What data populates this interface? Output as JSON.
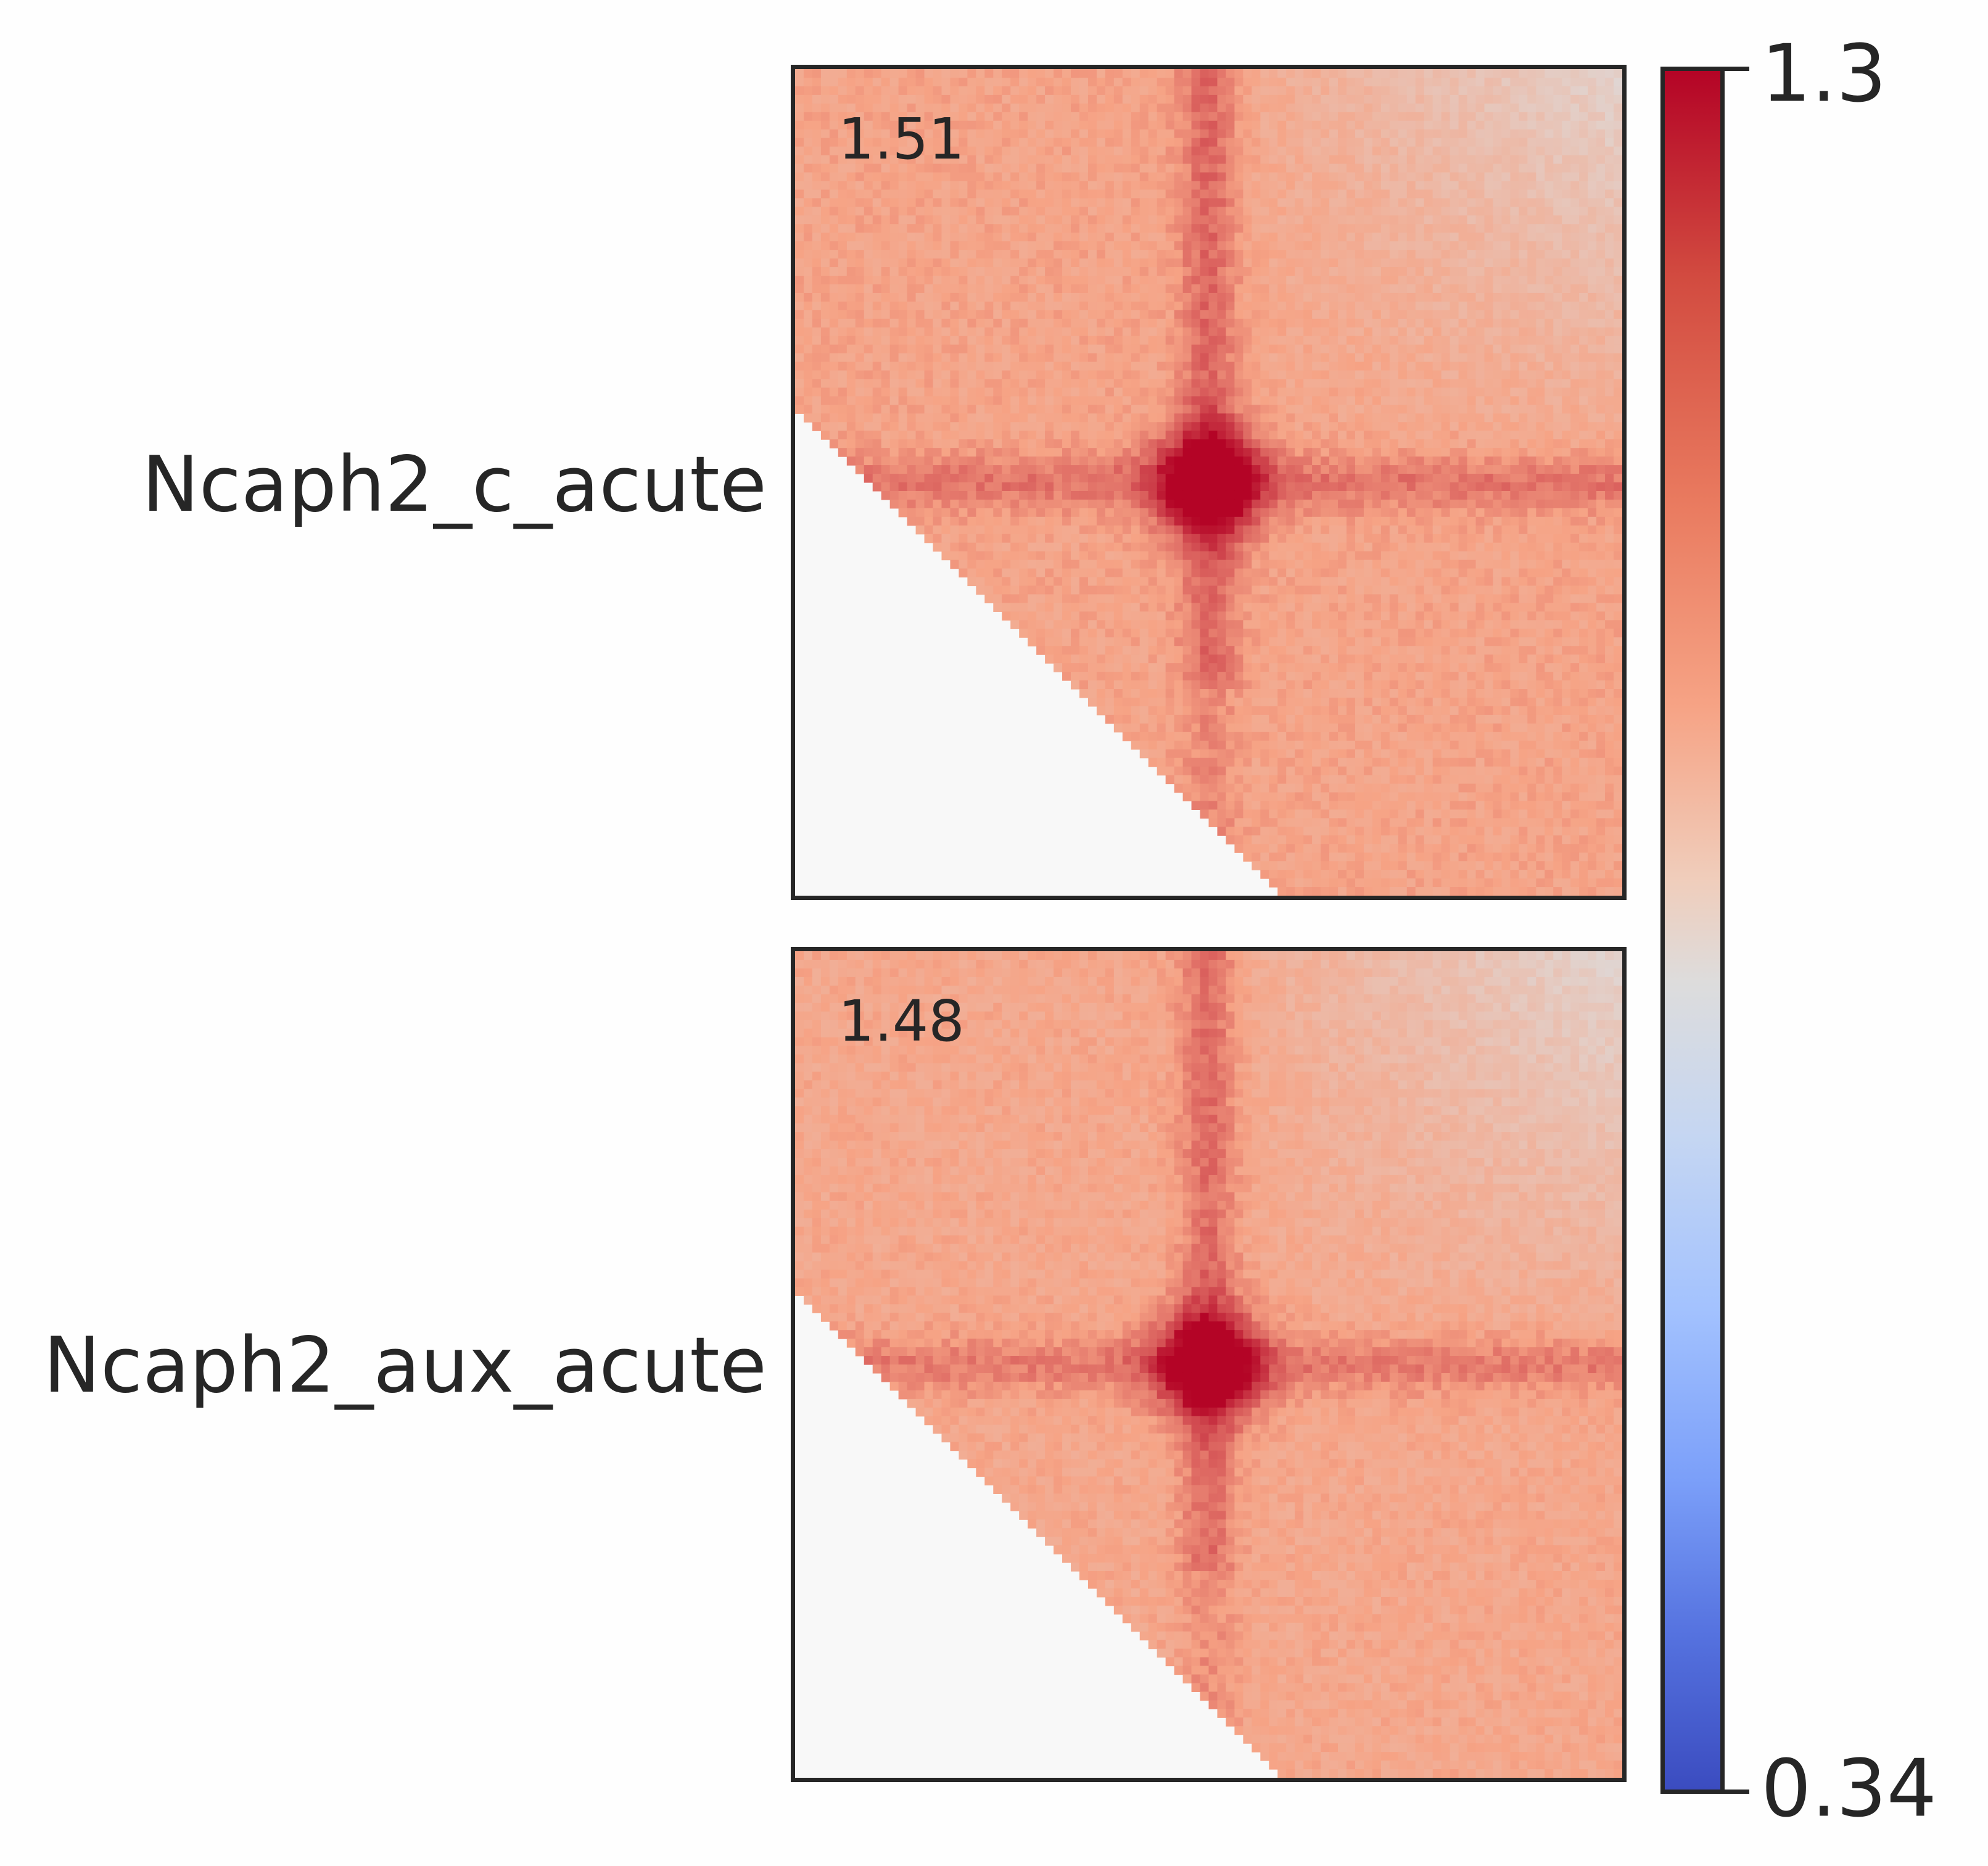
{
  "chart_data": {
    "type": "heatmap",
    "title": "",
    "xlabel": "",
    "ylabel": "",
    "colormap": "coolwarm",
    "colorbar": {
      "min": 0.34,
      "max": 1.3,
      "tick_labels": [
        "1.3",
        "0.34"
      ],
      "colors": {
        "low": "#3b4cc0",
        "mid": "#dddcdc",
        "high": "#b40426"
      }
    },
    "panels": [
      {
        "name": "Ncaph2_c_acute",
        "score": "1.51",
        "center_value": 1.3,
        "background_value": 1.05
      },
      {
        "name": "Ncaph2_aux_acute",
        "score": "1.48",
        "center_value": 1.3,
        "background_value": 1.04
      }
    ],
    "masked_region": "lower-left triangle",
    "masked_color": "#f8f8f8"
  }
}
